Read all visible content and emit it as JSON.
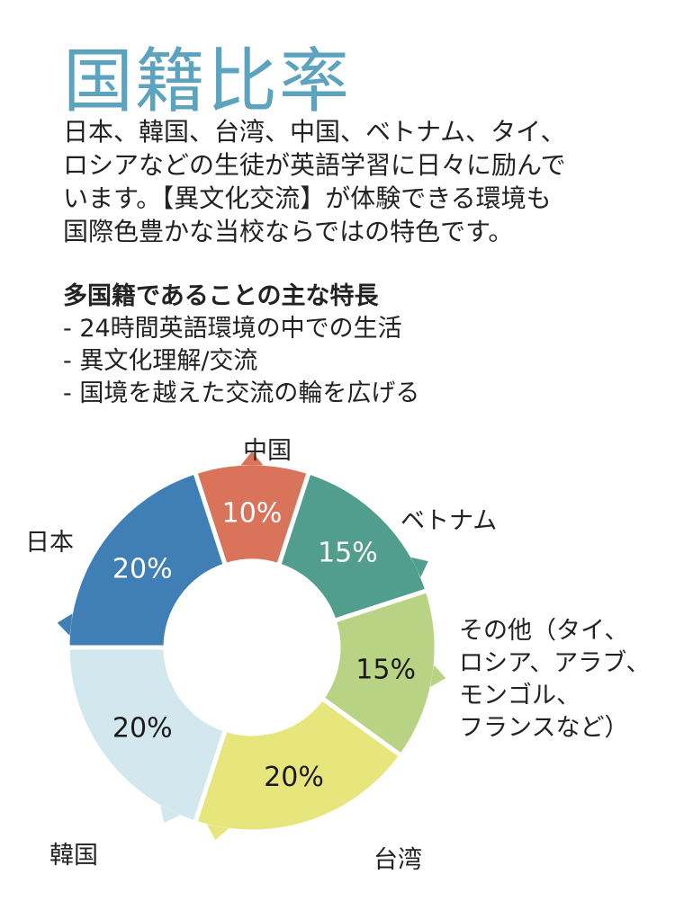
{
  "title": "国籍比率",
  "intro_lines": [
    "日本、韓国、台湾、中国、ベトナム、タイ、",
    "ロシアなどの生徒が英語学習に日々に励んで",
    "います。【異文化交流】が体験できる環境も",
    "国際色豊かな当校ならではの特色です。"
  ],
  "features": {
    "heading": "多国籍であることの主な特長",
    "items": [
      "- 24時間英語環境の中での生活",
      "- 異文化理解/交流",
      "- 国境を越えた交流の輪を広げる"
    ]
  },
  "chart_data": {
    "type": "pie",
    "subtype": "donut",
    "slices": [
      {
        "label": "中国",
        "value": 10,
        "value_label": "10%",
        "color": "#d9745a",
        "text_color": "#ffffff"
      },
      {
        "label": "ベトナム",
        "value": 15,
        "value_label": "15%",
        "color": "#529e8e",
        "text_color": "#ffffff"
      },
      {
        "label_lines": [
          "その他（タイ、",
          "ロシア、アラブ、",
          "モンゴル、",
          "フランスなど）"
        ],
        "value": 15,
        "value_label": "15%",
        "color": "#b8d383",
        "text_color": "#1a1a1a"
      },
      {
        "label": "台湾",
        "value": 20,
        "value_label": "20%",
        "color": "#e7e67c",
        "text_color": "#1a1a1a"
      },
      {
        "label": "韓国",
        "value": 20,
        "value_label": "20%",
        "color": "#d3e7ee",
        "text_color": "#1a1a1a"
      },
      {
        "label": "日本",
        "value": 20,
        "value_label": "20%",
        "color": "#3f7fb6",
        "text_color": "#ffffff"
      }
    ]
  }
}
